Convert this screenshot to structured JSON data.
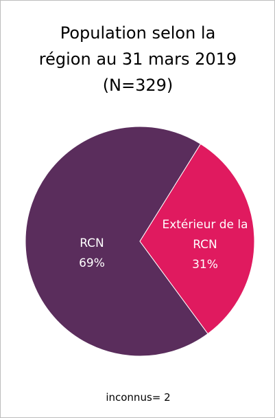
{
  "chart_data": {
    "type": "pie",
    "title": "Population selon la région au 31 mars 2019 (N=329)",
    "categories": [
      "RCN",
      "Extérieur de la RCN"
    ],
    "values": [
      69,
      31
    ],
    "value_labels": [
      "69%",
      "31%"
    ],
    "colors": [
      "#5a2d5c",
      "#e01a5f"
    ],
    "footnote": "inconnus= 2"
  }
}
